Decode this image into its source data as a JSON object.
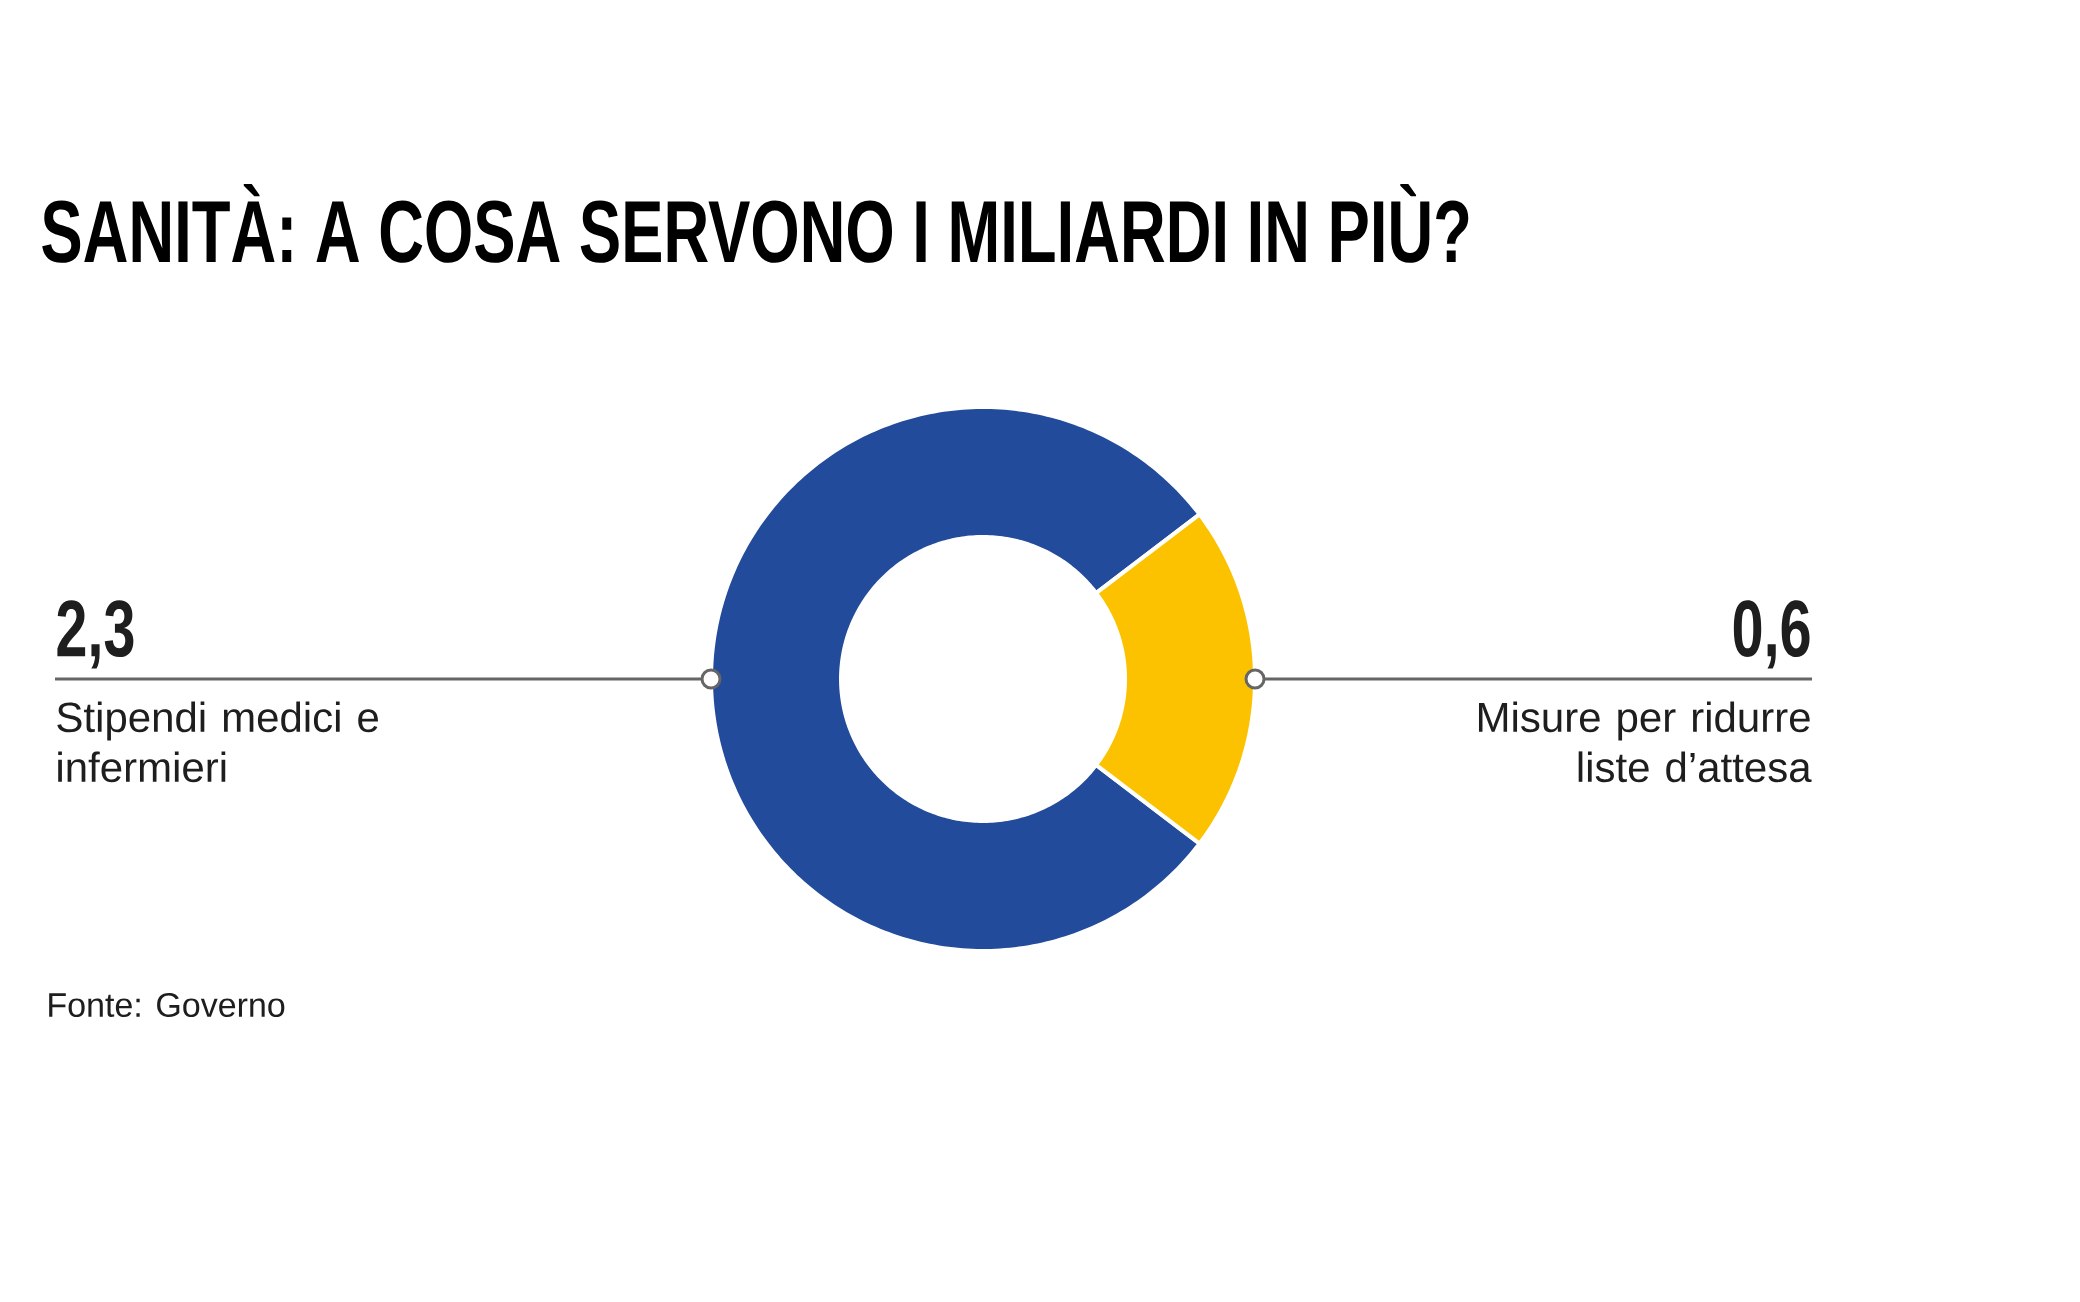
{
  "chart_data": {
    "type": "donut",
    "title": "SANITÀ: A COSA SERVONO I MILIARDI IN PIÙ?",
    "categories": [
      "Stipendi medici e infermieri",
      "Misure per ridurre liste d’attesa"
    ],
    "values": [
      2.3,
      0.6
    ],
    "colors": [
      "#234b9b",
      "#fcc200"
    ],
    "value_labels": [
      "2,3",
      "0,6"
    ],
    "annotations": [
      "Fonte: Governo"
    ]
  }
}
